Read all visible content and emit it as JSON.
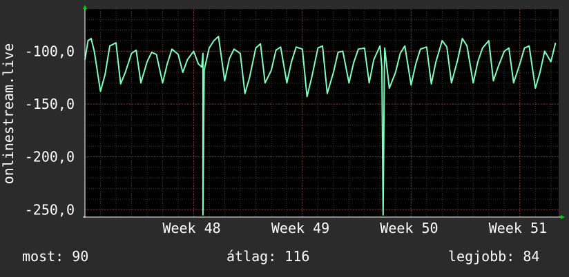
{
  "chart_data": {
    "type": "line",
    "ylabel": "onlinestream.live",
    "ylim": [
      -257,
      -60
    ],
    "y_ticks": [
      -100,
      -150,
      -200,
      -250
    ],
    "y_tick_labels": [
      "-100,0",
      "-150,0",
      "-200,0",
      "-250,0"
    ],
    "x_ticks": [
      {
        "label": "Week 48",
        "day": 7
      },
      {
        "label": "Week 49",
        "day": 14
      },
      {
        "label": "Week 50",
        "day": 21
      },
      {
        "label": "Week 51",
        "day": 28
      }
    ],
    "x_days_range": [
      0,
      30.5
    ],
    "grid": true,
    "series": [
      {
        "color": "#7fffbf",
        "x": [
          0,
          0.2,
          0.4,
          0.6,
          1.0,
          1.3,
          1.6,
          2.0,
          2.3,
          2.6,
          3.0,
          3.3,
          3.6,
          4.0,
          4.3,
          4.6,
          5.0,
          5.3,
          5.6,
          6.0,
          6.3,
          6.6,
          7.0,
          7.3,
          7.6,
          8.0,
          8.3,
          8.6,
          9.0,
          9.3,
          9.6,
          10.0,
          10.3,
          10.6,
          11.0,
          11.3,
          11.6,
          12.0,
          12.3,
          12.6,
          13.0,
          13.3,
          13.6,
          14.0,
          14.3,
          14.6,
          15.0,
          15.3,
          15.6,
          16.0,
          16.3,
          16.6,
          17.0,
          17.3,
          17.6,
          18.0,
          18.3,
          18.6,
          19.0,
          19.3,
          19.6,
          20.0,
          20.3,
          20.6,
          21.0,
          21.3,
          21.6,
          22.0,
          22.3,
          22.6,
          23.0,
          23.3,
          23.6,
          24.0,
          24.3,
          24.6,
          25.0,
          25.3,
          25.6,
          26.0,
          26.3,
          26.6,
          27.0,
          27.3,
          27.6,
          28.0,
          28.3,
          28.6,
          29.0,
          29.3,
          29.6,
          30.0,
          30.3
        ],
        "values": [
          -108,
          -90,
          -88,
          -100,
          -138,
          -122,
          -95,
          -92,
          -131,
          -120,
          -102,
          -99,
          -130,
          -110,
          -101,
          -103,
          -130,
          -112,
          -98,
          -103,
          -120,
          -108,
          -100,
          -112,
          -102,
          -97,
          -90,
          -86,
          -128,
          -107,
          -98,
          -102,
          -140,
          -125,
          -97,
          -93,
          -130,
          -118,
          -99,
          -96,
          -130,
          -110,
          -96,
          -98,
          -143,
          -125,
          -97,
          -95,
          -140,
          -120,
          -101,
          -100,
          -130,
          -111,
          -98,
          -97,
          -130,
          -108,
          -95,
          -97,
          -135,
          -120,
          -102,
          -95,
          -132,
          -112,
          -98,
          -96,
          -131,
          -110,
          -90,
          -96,
          -130,
          -108,
          -88,
          -95,
          -130,
          -110,
          -97,
          -90,
          -128,
          -115,
          -100,
          -97,
          -130,
          -112,
          -97,
          -95,
          -135,
          -120,
          -100,
          -110,
          -92
        ]
      }
    ],
    "spikes": [
      {
        "day": 7.6,
        "value": -255
      },
      {
        "day": 19.2,
        "value": -255
      }
    ]
  },
  "stats": {
    "most": "most: 90",
    "atlag": "átlag: 116",
    "legjobb": "legjobb: 84"
  }
}
